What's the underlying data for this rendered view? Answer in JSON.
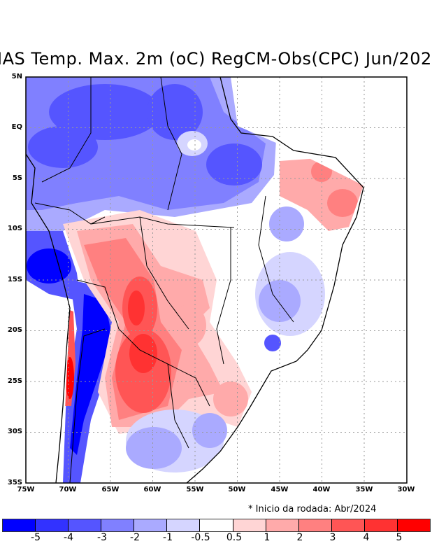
{
  "title": "IAS Temp. Max. 2m (oC) RegCM-Obs(CPC) Jun/202",
  "lat_labels": [
    "5N",
    "EQ",
    "5S",
    "10S",
    "15S",
    "20S",
    "25S",
    "30S",
    "35S"
  ],
  "lon_labels": [
    "75W",
    "70W",
    "65W",
    "60W",
    "55W",
    "50W",
    "45W",
    "40W",
    "35W",
    "30W"
  ],
  "note": "* Inicio da rodada: Abr/2024",
  "colorbar": {
    "colors": [
      "#0000ff",
      "#3232ff",
      "#5555ff",
      "#8080ff",
      "#aaaaff",
      "#d5d5ff",
      "#ffffff",
      "#ffd5d5",
      "#ffaaaa",
      "#ff8080",
      "#ff5555",
      "#ff3232",
      "#ff0000"
    ],
    "labels": [
      "-5",
      "-4",
      "-3",
      "-2",
      "-1",
      "-0.5",
      "0.5",
      "1",
      "2",
      "3",
      "4",
      "5"
    ]
  }
}
